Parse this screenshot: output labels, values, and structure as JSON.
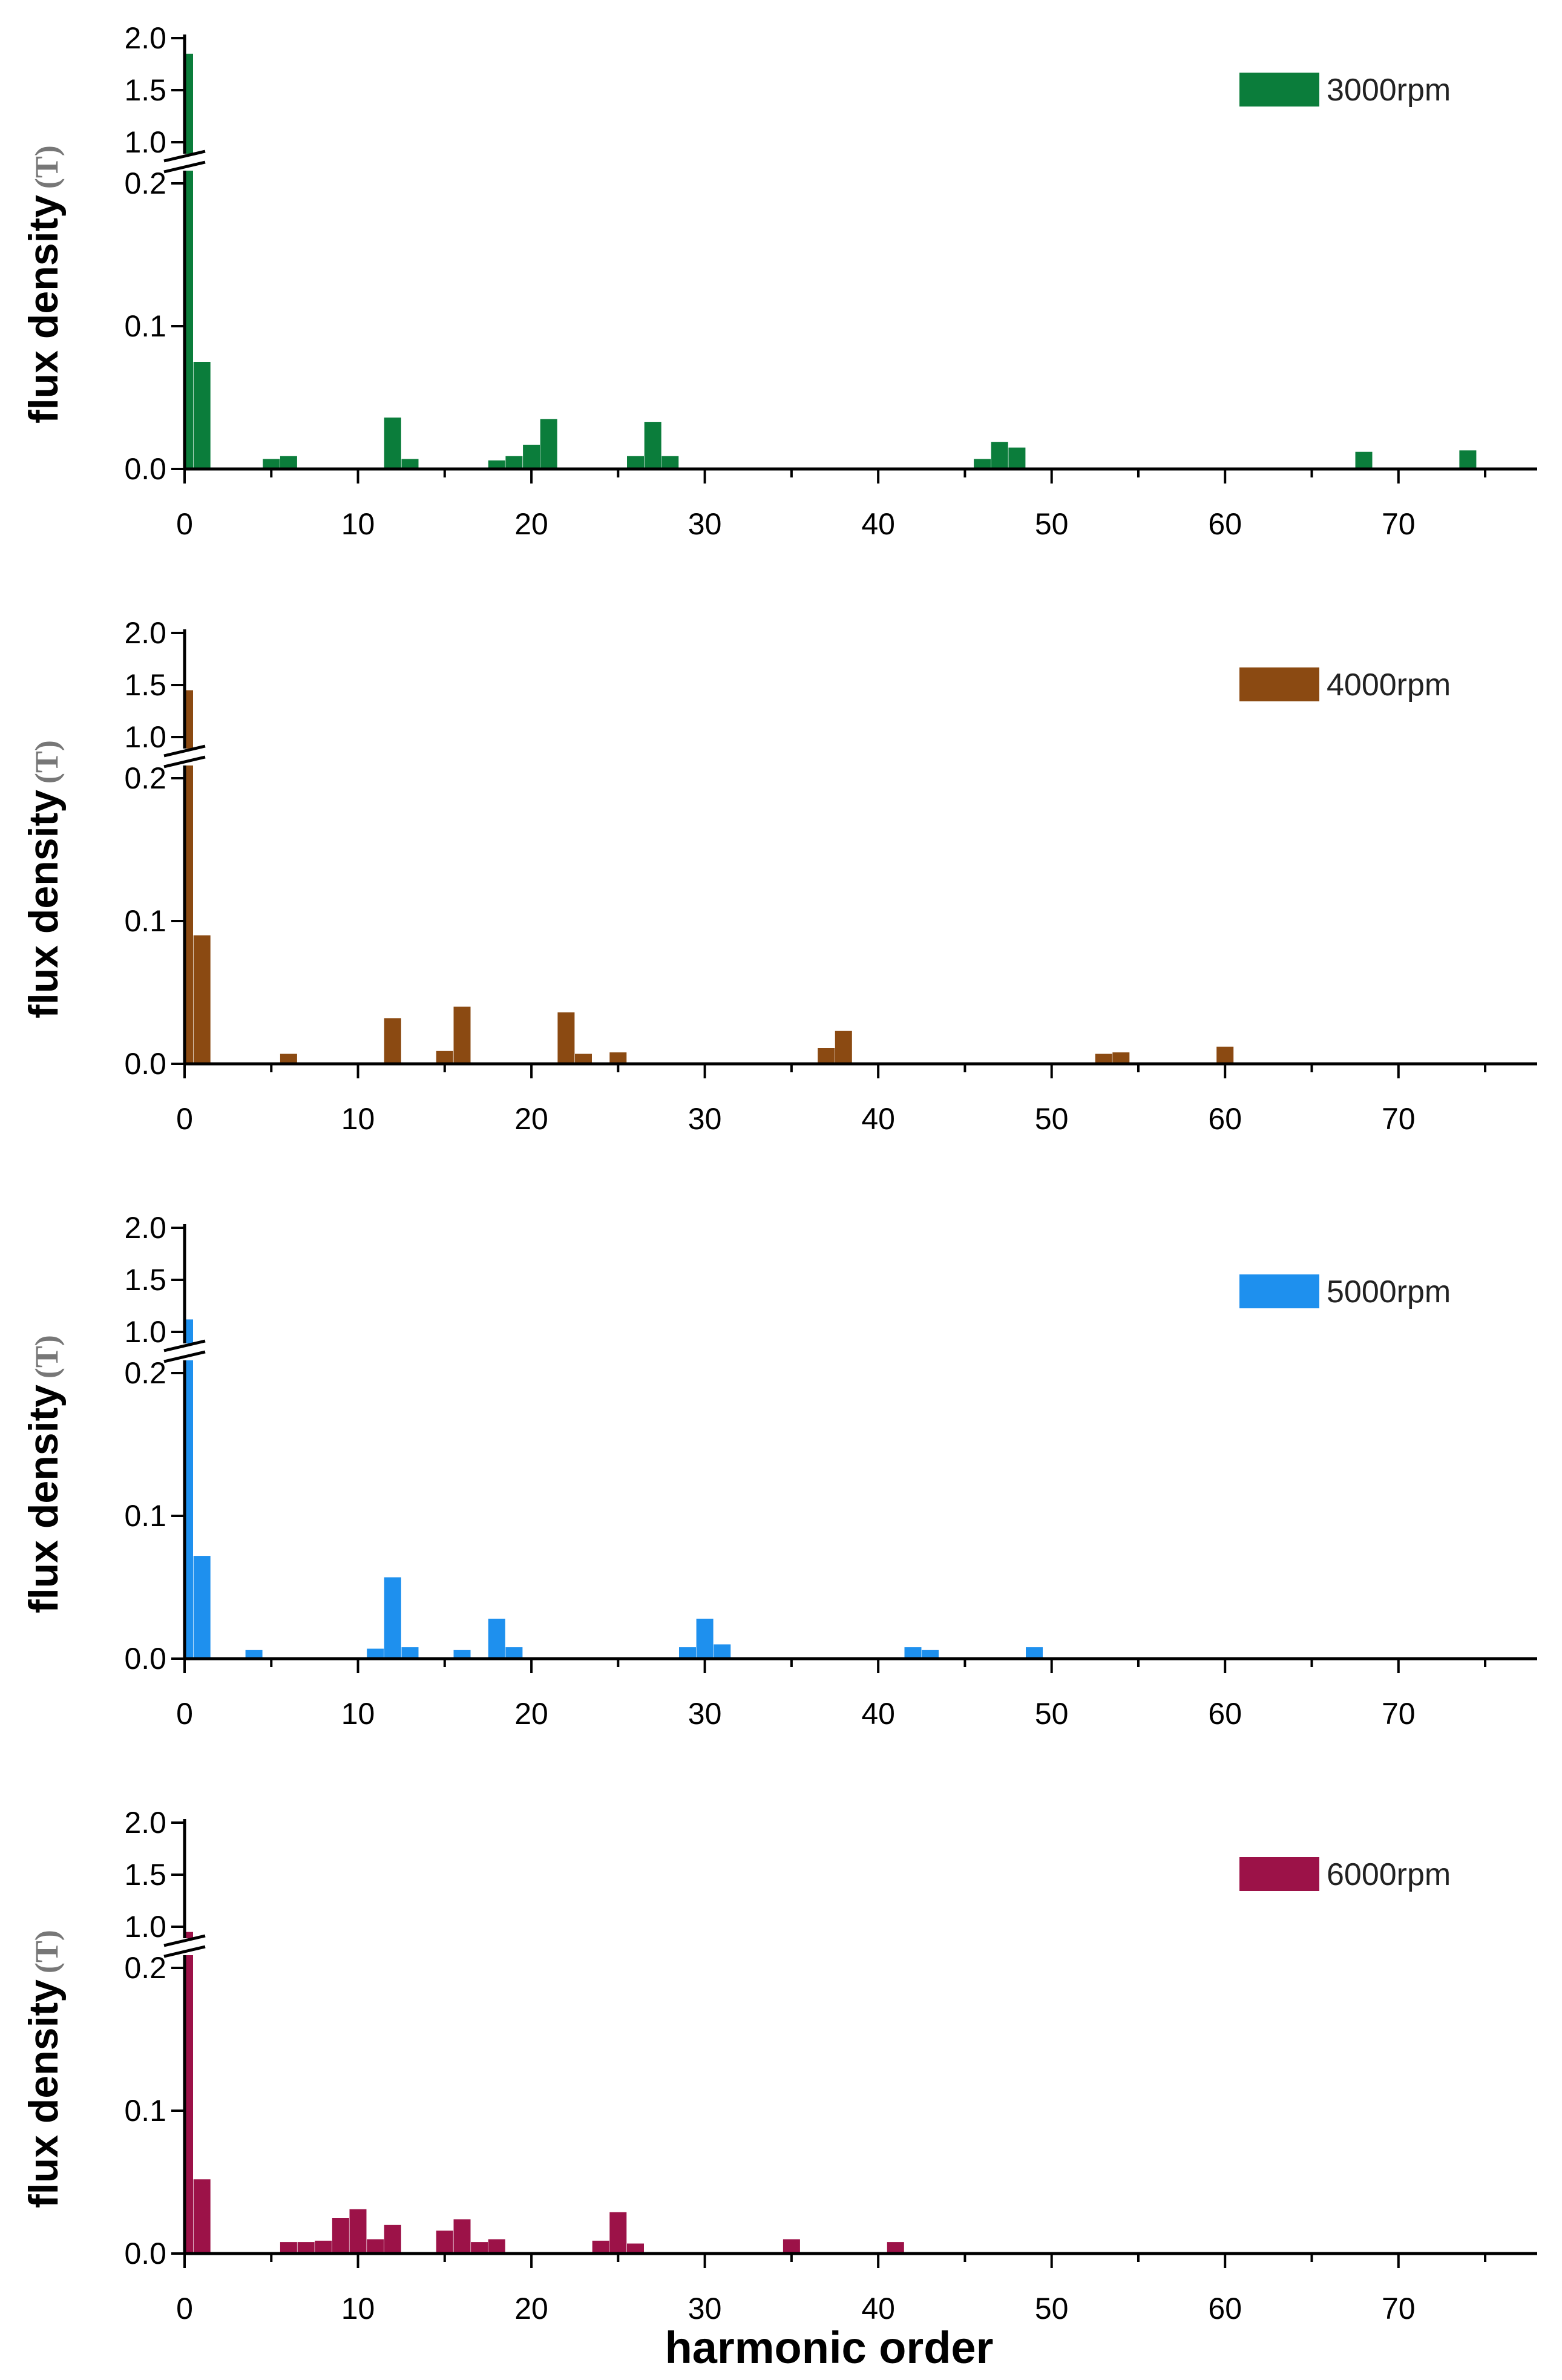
{
  "figure": {
    "xlabel": "harmonic order"
  },
  "chart_data": [
    {
      "type": "bar",
      "title": "",
      "legend": "3000rpm",
      "color": "#0b7d3b",
      "ylabel": "flux density",
      "yunit": "(T)",
      "xlabel": "harmonic order",
      "xlim": [
        0,
        78
      ],
      "xticks": [
        "0",
        "10",
        "20",
        "30",
        "40",
        "50",
        "60",
        "70"
      ],
      "ylim_lower": [
        0,
        0.2
      ],
      "ylim_upper": [
        1.0,
        2.0
      ],
      "yticks_lower": [
        "0.0",
        "0.1",
        "0.2"
      ],
      "yticks_upper": [
        "1.0",
        "1.5",
        "2.0"
      ],
      "y_break": [
        0.2,
        1.0
      ],
      "x": [
        0,
        1,
        5,
        6,
        12,
        13,
        18,
        19,
        20,
        21,
        26,
        27,
        28,
        46,
        47,
        48,
        68,
        74
      ],
      "values": [
        1.85,
        0.075,
        0.007,
        0.009,
        0.036,
        0.007,
        0.006,
        0.009,
        0.017,
        0.035,
        0.009,
        0.033,
        0.009,
        0.007,
        0.019,
        0.015,
        0.012,
        0.013
      ]
    },
    {
      "type": "bar",
      "title": "",
      "legend": "4000rpm",
      "color": "#8b4a12",
      "ylabel": "flux density",
      "yunit": "(T)",
      "xlabel": "harmonic order",
      "xlim": [
        0,
        78
      ],
      "xticks": [
        "0",
        "10",
        "20",
        "30",
        "40",
        "50",
        "60",
        "70"
      ],
      "ylim_lower": [
        0,
        0.2
      ],
      "ylim_upper": [
        1.0,
        2.0
      ],
      "yticks_lower": [
        "0.0",
        "0.1",
        "0.2"
      ],
      "yticks_upper": [
        "1.0",
        "1.5",
        "2.0"
      ],
      "y_break": [
        0.2,
        1.0
      ],
      "x": [
        0,
        1,
        6,
        12,
        15,
        16,
        22,
        23,
        25,
        37,
        38,
        53,
        54,
        60
      ],
      "values": [
        1.45,
        0.09,
        0.007,
        0.032,
        0.009,
        0.04,
        0.036,
        0.007,
        0.008,
        0.011,
        0.023,
        0.007,
        0.008,
        0.012
      ]
    },
    {
      "type": "bar",
      "title": "",
      "legend": "5000rpm",
      "color": "#1e90ee",
      "ylabel": "flux density",
      "yunit": "(T)",
      "xlabel": "harmonic order",
      "xlim": [
        0,
        78
      ],
      "xticks": [
        "0",
        "10",
        "20",
        "30",
        "40",
        "50",
        "60",
        "70"
      ],
      "ylim_lower": [
        0,
        0.2
      ],
      "ylim_upper": [
        1.0,
        2.0
      ],
      "yticks_lower": [
        "0.0",
        "0.1",
        "0.2"
      ],
      "yticks_upper": [
        "1.0",
        "1.5",
        "2.0"
      ],
      "y_break": [
        0.2,
        1.0
      ],
      "x": [
        0,
        1,
        4,
        11,
        12,
        13,
        16,
        18,
        19,
        29,
        30,
        31,
        42,
        43,
        49
      ],
      "values": [
        1.12,
        0.072,
        0.006,
        0.007,
        0.057,
        0.008,
        0.006,
        0.028,
        0.008,
        0.008,
        0.028,
        0.01,
        0.008,
        0.006,
        0.008
      ]
    },
    {
      "type": "bar",
      "title": "",
      "legend": "6000rpm",
      "color": "#9c1248",
      "ylabel": "flux density",
      "yunit": "(T)",
      "xlabel": "harmonic order",
      "xlim": [
        0,
        78
      ],
      "xticks": [
        "0",
        "10",
        "20",
        "30",
        "40",
        "50",
        "60",
        "70"
      ],
      "ylim_lower": [
        0,
        0.2
      ],
      "ylim_upper": [
        1.0,
        2.0
      ],
      "yticks_lower": [
        "0.0",
        "0.1",
        "0.2"
      ],
      "yticks_upper": [
        "1.0",
        "1.5",
        "2.0"
      ],
      "y_break": [
        0.2,
        1.0
      ],
      "x": [
        0,
        1,
        6,
        7,
        8,
        9,
        10,
        11,
        12,
        15,
        16,
        17,
        18,
        24,
        25,
        26,
        35,
        41
      ],
      "values": [
        0.95,
        0.052,
        0.008,
        0.008,
        0.009,
        0.025,
        0.031,
        0.01,
        0.02,
        0.016,
        0.024,
        0.008,
        0.01,
        0.009,
        0.029,
        0.007,
        0.01,
        0.008
      ]
    }
  ]
}
